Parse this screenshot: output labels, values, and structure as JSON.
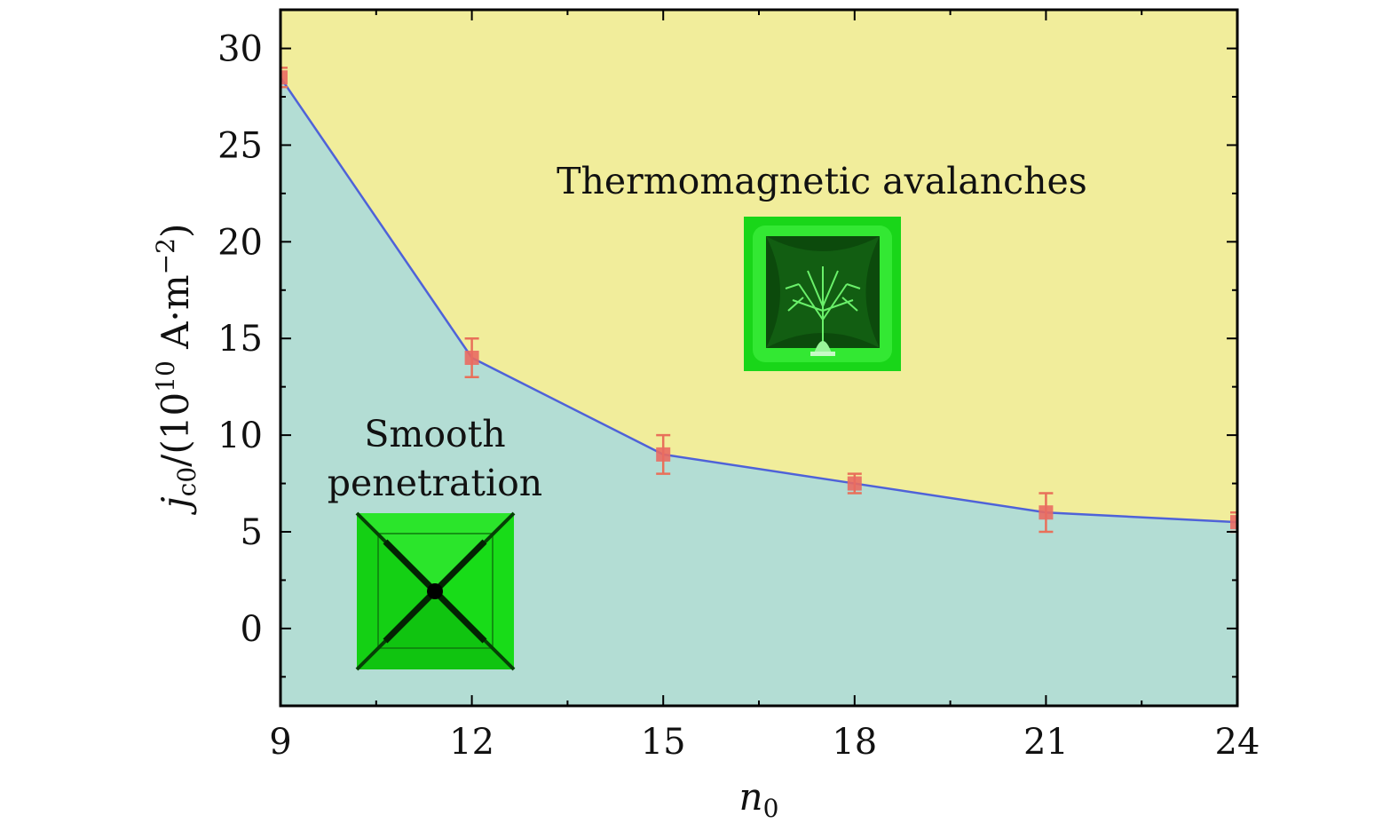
{
  "chart_data": {
    "type": "line",
    "x_axis": {
      "label": "n0",
      "ticks": [
        9,
        12,
        15,
        18,
        21,
        24
      ],
      "range": [
        9,
        24
      ]
    },
    "y_axis": {
      "label": "jc0/(10^10 A·m^-2)",
      "ticks": [
        0,
        5,
        10,
        15,
        20,
        25,
        30
      ],
      "range": [
        -4,
        32
      ]
    },
    "series": [
      {
        "x": [
          9,
          12,
          15,
          18,
          21,
          24
        ],
        "y": [
          28.5,
          14.0,
          9.0,
          7.5,
          6.0,
          5.5
        ],
        "error": [
          0.5,
          1.0,
          1.0,
          0.5,
          1.0,
          0.5
        ]
      }
    ],
    "regions": {
      "above": "Thermomagnetic avalanches",
      "below_line1": "Smooth",
      "below_line2": "penetration"
    },
    "colors": {
      "above_fill": "#f1ed9b",
      "below_fill": "#b3ddd4",
      "line": "#4f62d8",
      "marker": "#e96a62",
      "error_bar": "#e8705a",
      "inset_bright": "#16e016",
      "inset_dark": "#0c4a0c"
    },
    "grid": false
  }
}
